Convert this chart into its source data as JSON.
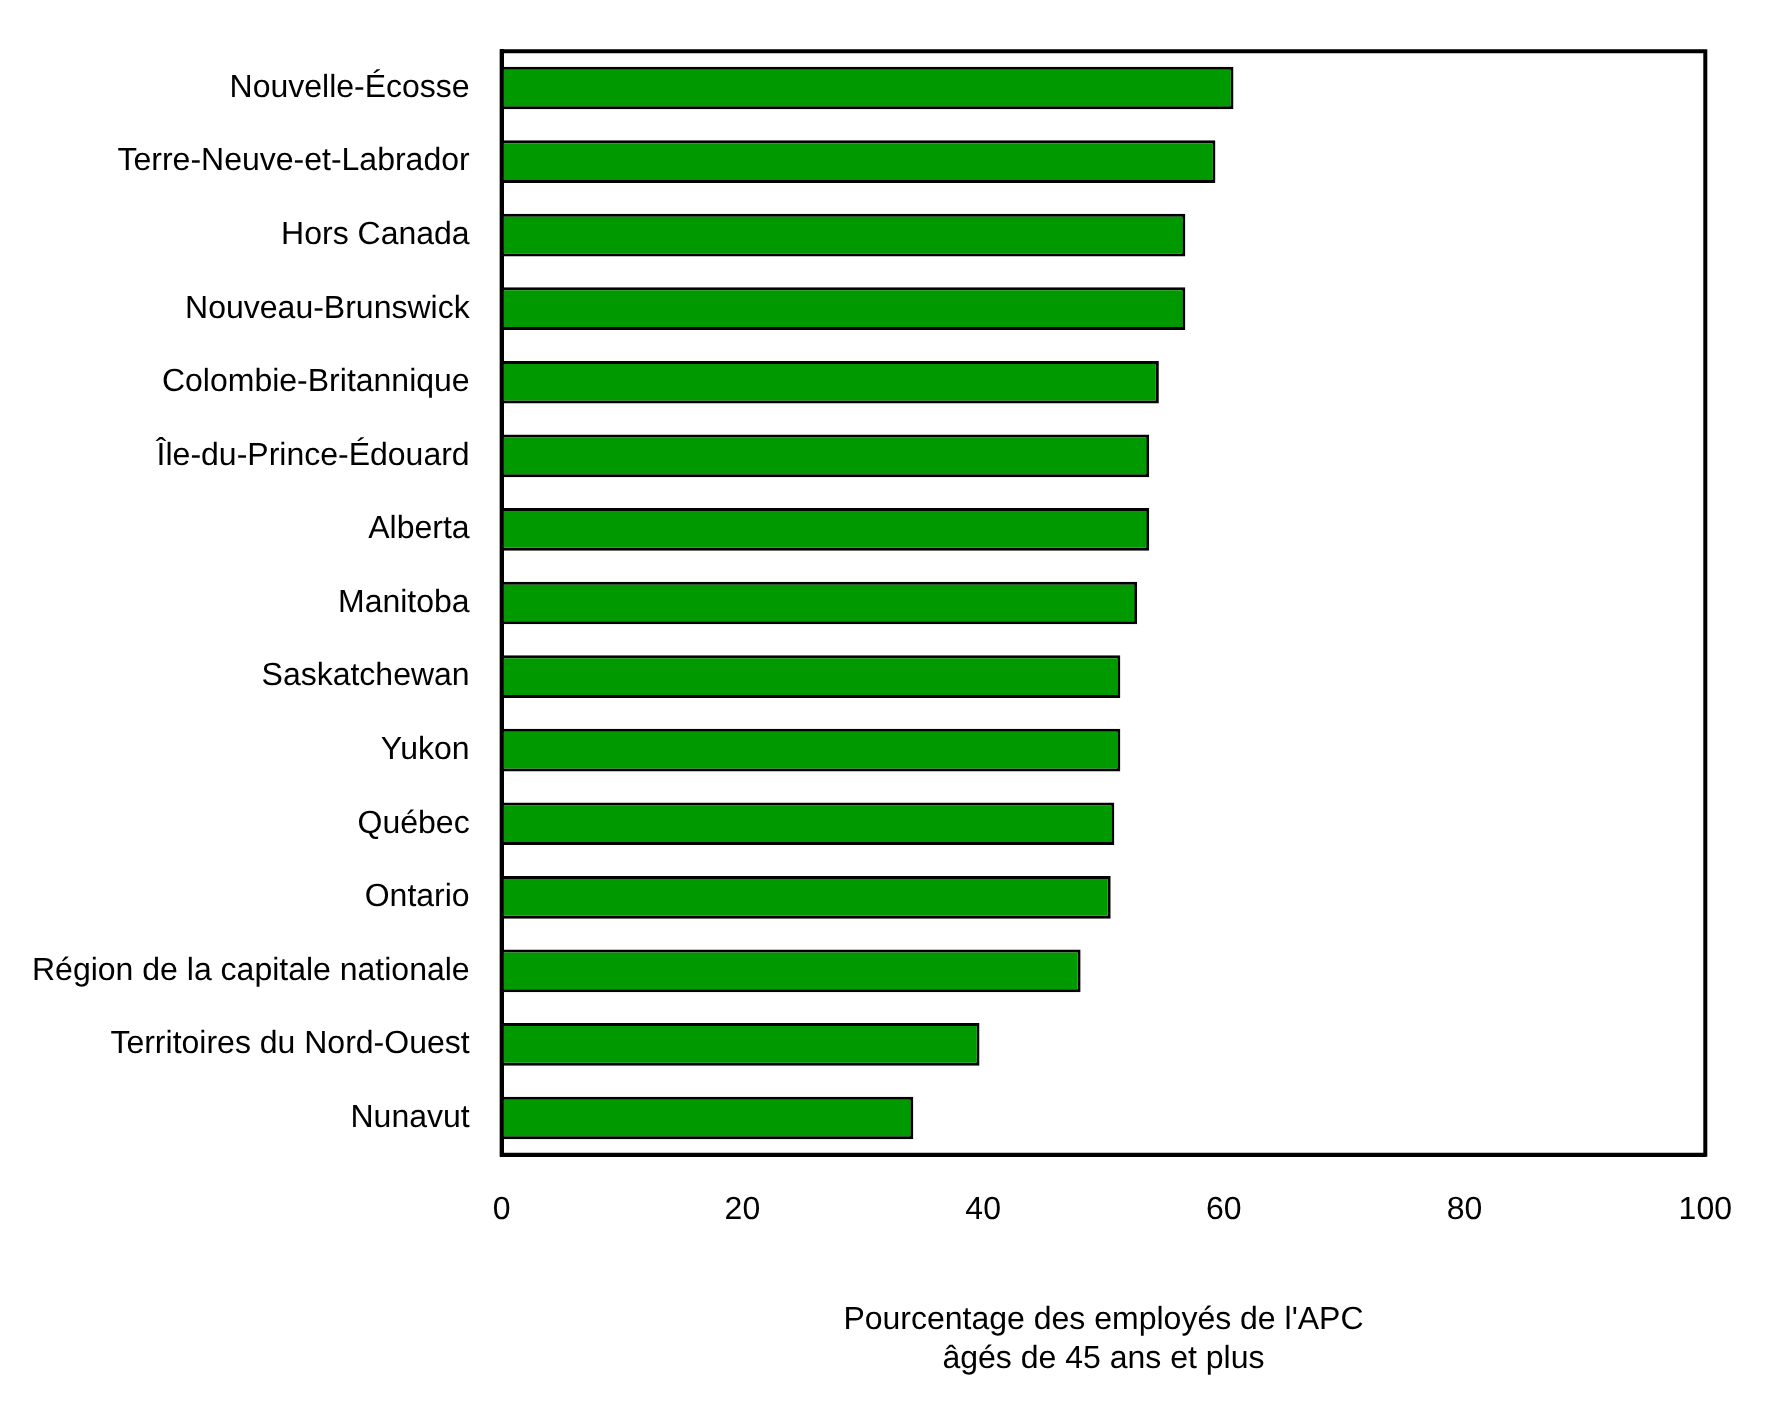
{
  "chart_data": {
    "type": "bar",
    "orientation": "horizontal",
    "xlabel": "Pourcentage des employés de l'APC\nâgés de 45 ans et plus",
    "categories": [
      "Nouvelle-Écosse",
      "Terre-Neuve-et-Labrador",
      "Hors Canada",
      "Nouveau-Brunswick",
      "Colombie-Britannique",
      "Île-du-Prince-Édouard",
      "Alberta",
      "Manitoba",
      "Saskatchewan",
      "Yukon",
      "Québec",
      "Ontario",
      "Région de la capitale nationale",
      "Territoires du Nord-Ouest",
      "Nunavut"
    ],
    "values": [
      60.8,
      59.3,
      56.8,
      56.8,
      54.6,
      53.8,
      53.8,
      52.8,
      51.4,
      51.4,
      50.9,
      50.6,
      48.1,
      39.7,
      34.2
    ],
    "color": "#009900",
    "xlim": [
      0,
      100
    ],
    "xticks": [
      0,
      20,
      40,
      60,
      80,
      100
    ],
    "grid": false,
    "legend": false
  }
}
